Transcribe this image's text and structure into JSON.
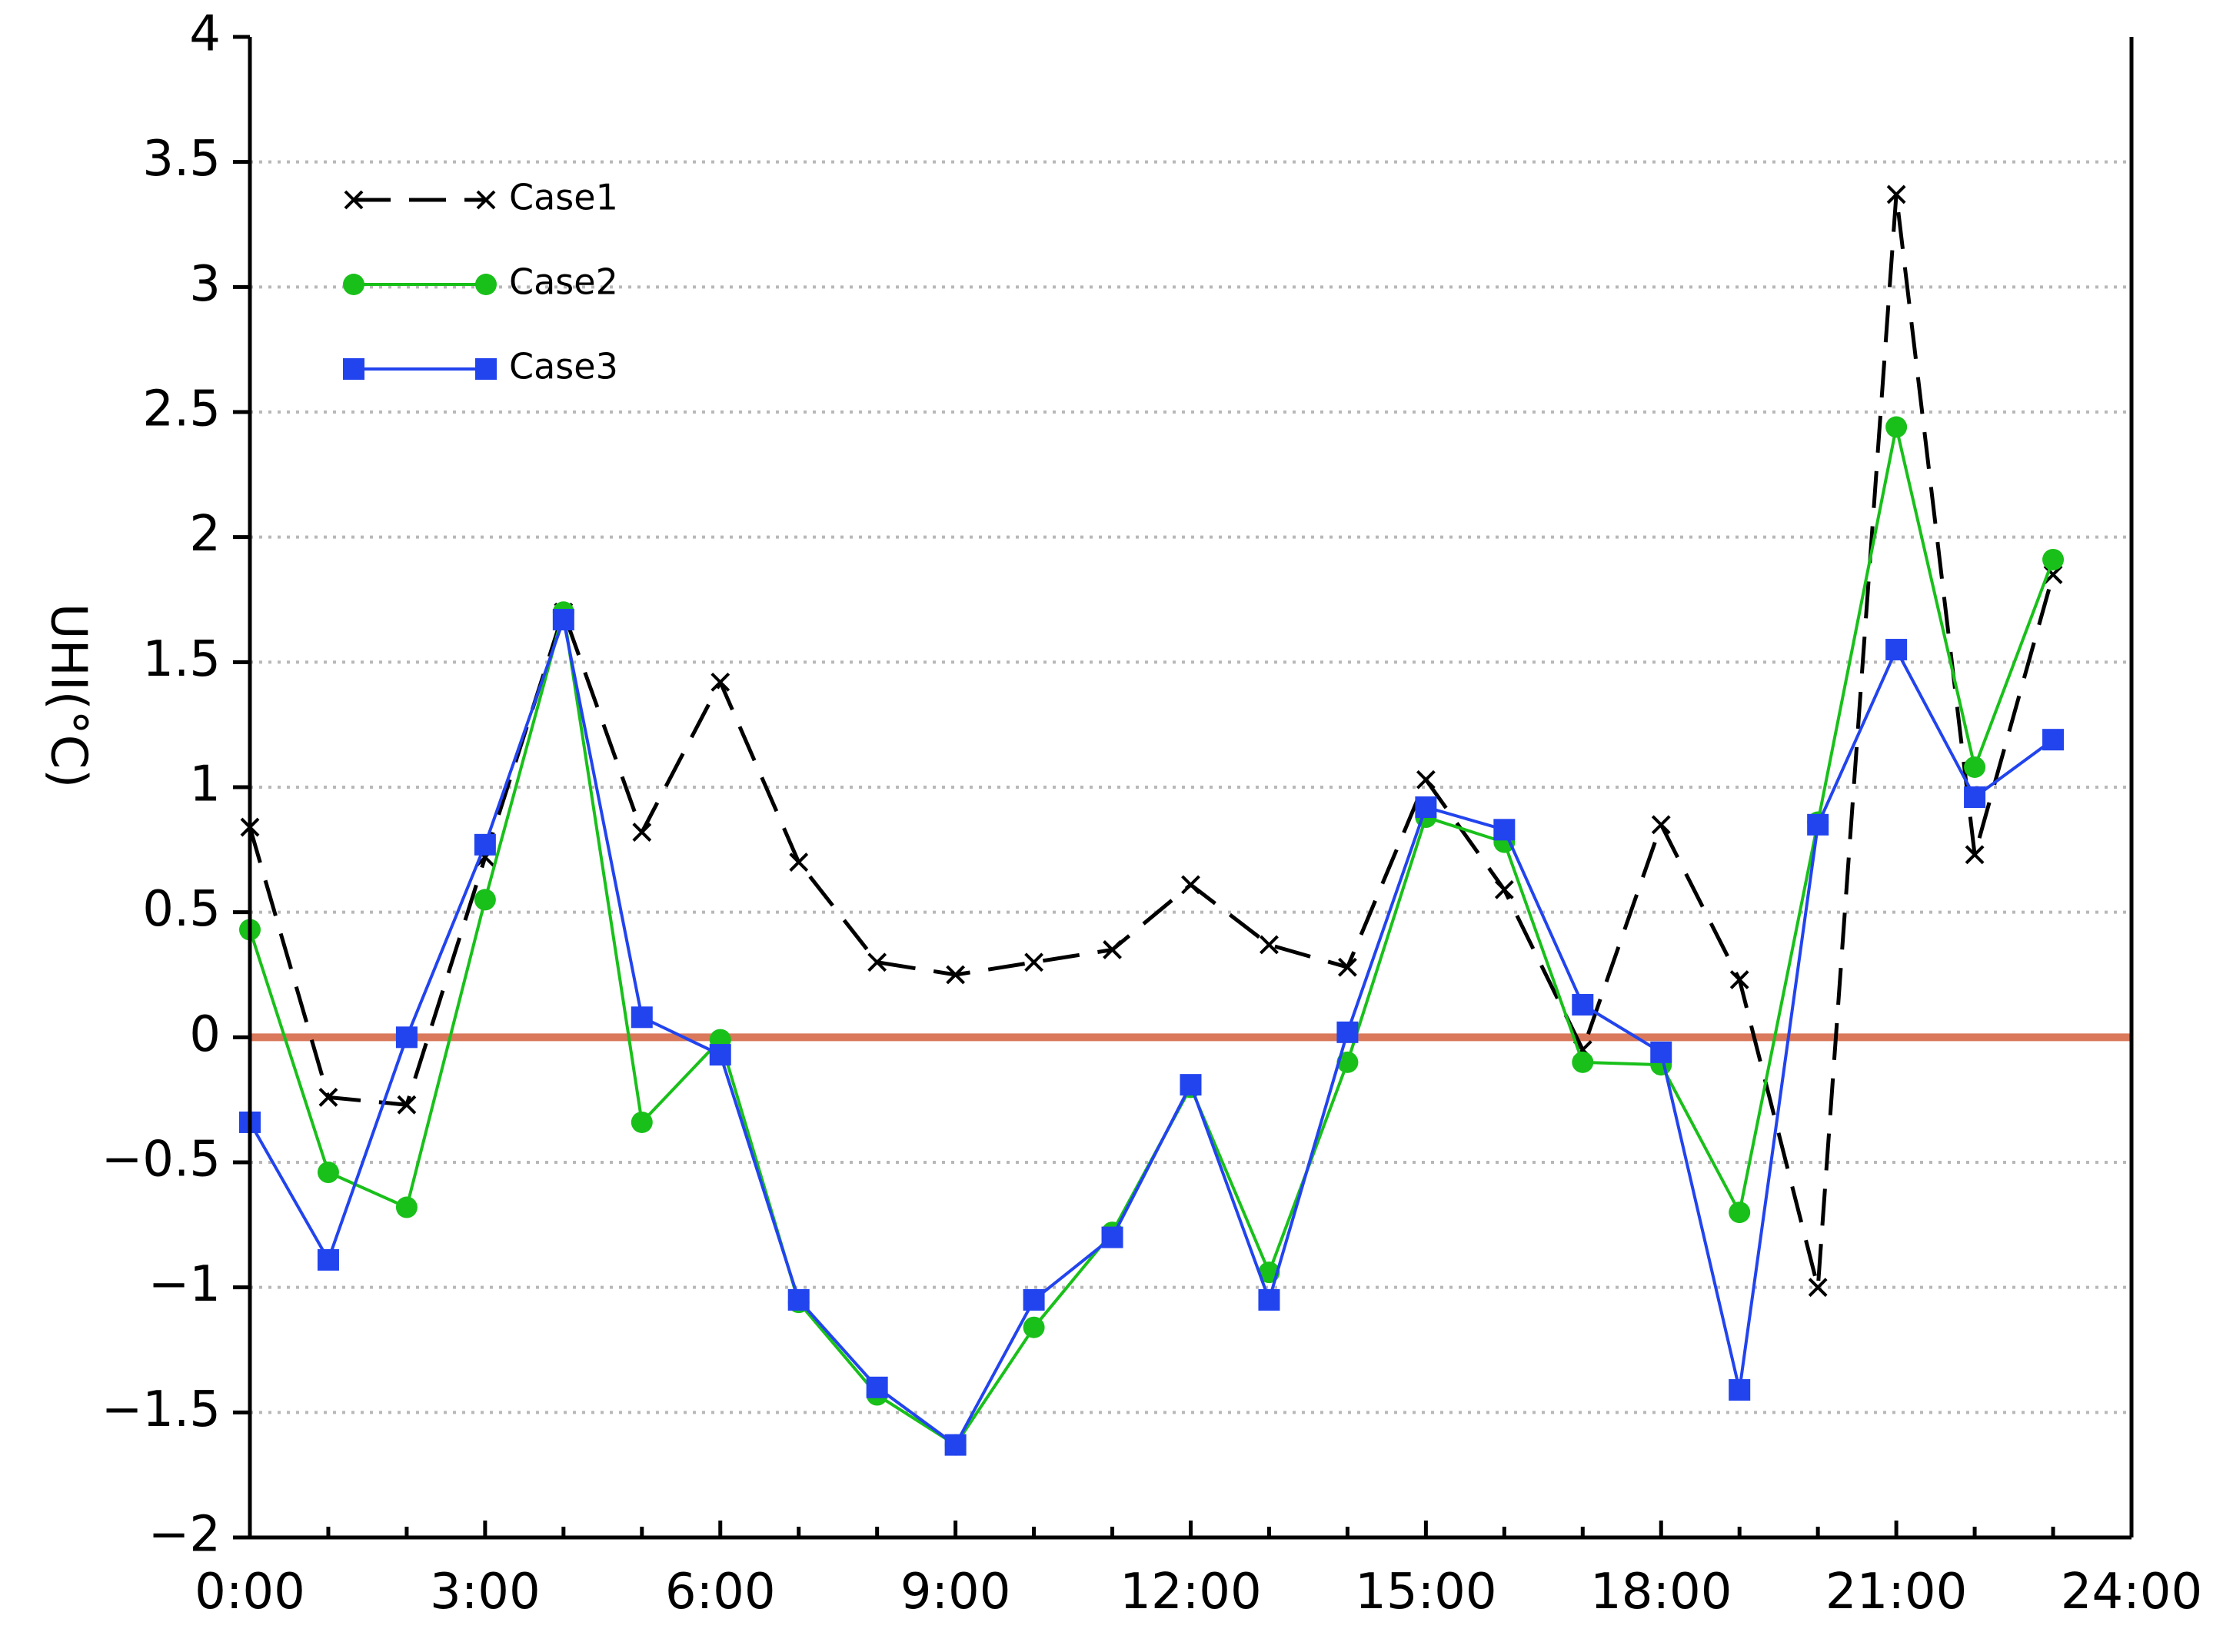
{
  "chart_data": {
    "type": "line",
    "title": "",
    "xlabel": "",
    "ylabel": "UHI(°C)",
    "x": [
      0,
      1,
      2,
      3,
      4,
      5,
      6,
      7,
      8,
      9,
      10,
      11,
      12,
      13,
      14,
      15,
      16,
      17,
      18,
      19,
      20,
      21,
      22,
      23,
      24
    ],
    "x_ticks": [
      0,
      3,
      6,
      9,
      12,
      15,
      18,
      21,
      24
    ],
    "x_tick_labels": [
      "0:00",
      "3:00",
      "6:00",
      "9:00",
      "12:00",
      "15:00",
      "18:00",
      "21:00",
      "24:00"
    ],
    "xlim": [
      0,
      24
    ],
    "ylim": [
      -2,
      4
    ],
    "y_ticks": [
      -2,
      -1.5,
      -1,
      -0.5,
      0,
      0.5,
      1,
      1.5,
      2,
      2.5,
      3,
      3.5,
      4
    ],
    "y_tick_labels": [
      "−2",
      "−1.5",
      "−1",
      "−0.5",
      "0",
      "0.5",
      "1",
      "1.5",
      "2",
      "2.5",
      "3",
      "3.5",
      "4"
    ],
    "grid": "horizontal dotted",
    "legend": "top-left",
    "reference_line": {
      "y": 0,
      "color": "#d9785a"
    },
    "series": [
      {
        "name": "Case1",
        "color": "#000000",
        "marker": "x",
        "line": "dashed",
        "values": [
          0.84,
          -0.24,
          -0.27,
          0.72,
          1.7,
          0.82,
          1.42,
          0.7,
          0.3,
          0.25,
          0.3,
          0.35,
          0.61,
          0.37,
          0.28,
          1.03,
          0.59,
          -0.05,
          0.85,
          0.23,
          -1.0,
          3.37,
          0.73,
          1.85,
          null
        ]
      },
      {
        "name": "Case2",
        "color": "#19c01a",
        "marker": "circle",
        "line": "solid",
        "values": [
          0.43,
          -0.54,
          -0.68,
          0.55,
          1.7,
          -0.34,
          -0.01,
          -1.06,
          -1.43,
          -1.63,
          -1.16,
          -0.78,
          -0.2,
          -0.94,
          -0.1,
          0.88,
          0.78,
          -0.1,
          -0.11,
          -0.7,
          0.86,
          2.44,
          1.08,
          1.91,
          null
        ]
      },
      {
        "name": "Case3",
        "color": "#2244ee",
        "marker": "square",
        "line": "solid",
        "values": [
          -0.34,
          -0.89,
          0.0,
          0.77,
          1.67,
          0.08,
          -0.07,
          -1.05,
          -1.4,
          -1.63,
          -1.05,
          -0.8,
          -0.19,
          -1.05,
          0.02,
          0.92,
          0.83,
          0.13,
          -0.06,
          -1.41,
          0.85,
          1.55,
          0.96,
          1.19,
          null
        ]
      }
    ]
  }
}
